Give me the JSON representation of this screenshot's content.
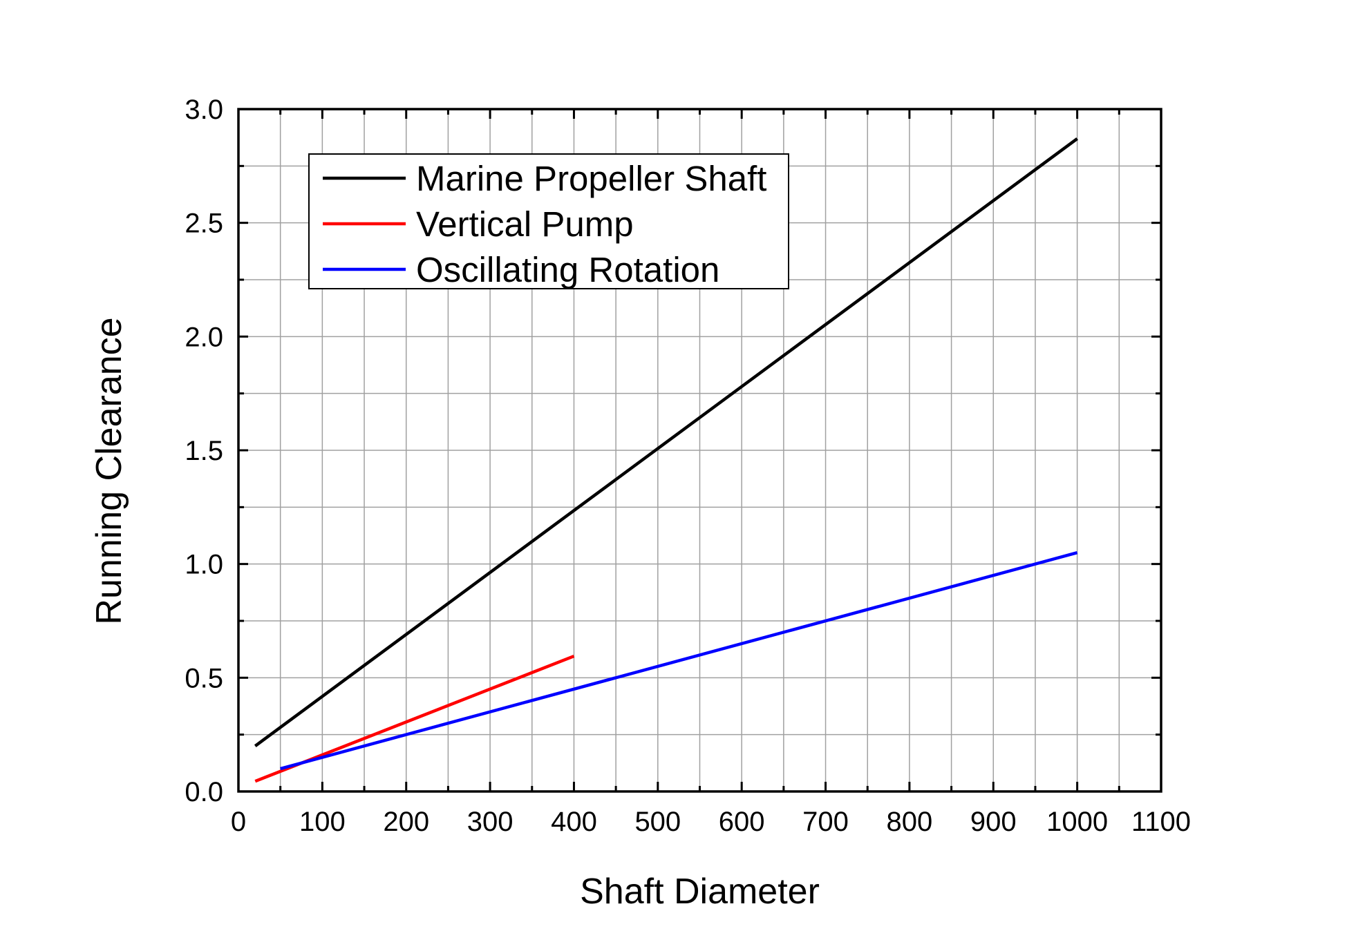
{
  "chart_data": {
    "type": "line",
    "title": "",
    "xlabel": "Shaft Diameter",
    "ylabel": "Running Clearance",
    "xlim": [
      0,
      1100
    ],
    "ylim": [
      0,
      3.0
    ],
    "x_ticks": [
      "0",
      "100",
      "200",
      "300",
      "400",
      "500",
      "600",
      "700",
      "800",
      "900",
      "1000",
      "1100"
    ],
    "y_ticks": [
      "0.0",
      "0.5",
      "1.0",
      "1.5",
      "2.0",
      "2.5",
      "3.0"
    ],
    "grid": true,
    "legend_position": "top-left",
    "series": [
      {
        "name": "Marine Propeller Shaft",
        "color": "#000000",
        "x": [
          20,
          1000
        ],
        "y": [
          0.2,
          2.87
        ]
      },
      {
        "name": "Vertical Pump",
        "color": "#ff0000",
        "x": [
          20,
          400
        ],
        "y": [
          0.045,
          0.595
        ]
      },
      {
        "name": "Oscillating Rotation",
        "color": "#0000ff",
        "x": [
          50,
          1000
        ],
        "y": [
          0.1,
          1.05
        ]
      }
    ]
  }
}
